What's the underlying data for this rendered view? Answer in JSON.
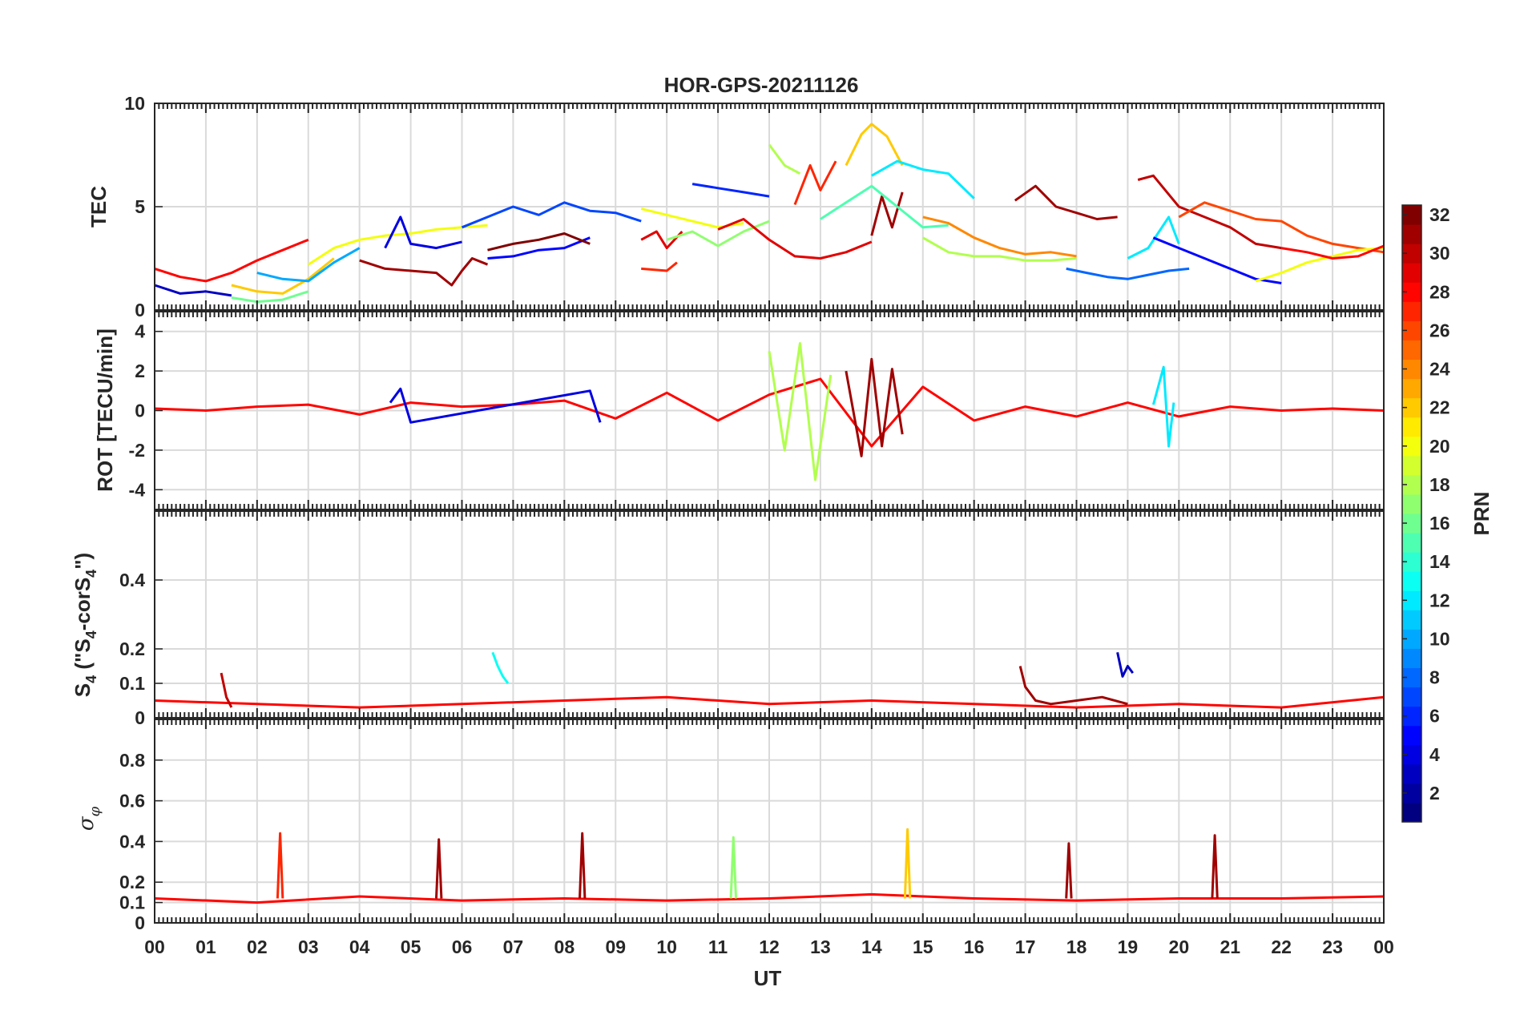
{
  "chart_data": {
    "type": "line",
    "title": "HOR-GPS-20211126",
    "xlabel": "UT",
    "x_ticks": [
      "00",
      "01",
      "02",
      "03",
      "04",
      "05",
      "06",
      "07",
      "08",
      "09",
      "10",
      "11",
      "12",
      "13",
      "14",
      "15",
      "16",
      "17",
      "18",
      "19",
      "20",
      "21",
      "22",
      "23",
      "00"
    ],
    "xlim": [
      0,
      24
    ],
    "grid": true,
    "colorbar": {
      "label": "PRN",
      "range": [
        1,
        32
      ],
      "ticks": [
        "2",
        "4",
        "6",
        "8",
        "10",
        "12",
        "14",
        "16",
        "18",
        "20",
        "22",
        "24",
        "26",
        "28",
        "30",
        "32"
      ],
      "colormap": "jet"
    },
    "panels": [
      {
        "id": "tec",
        "ylabel": "TEC",
        "ylim": [
          0,
          10
        ],
        "yticks": [
          "0",
          "5",
          "10"
        ],
        "series": [
          {
            "prn": 3,
            "x": [
              0,
              0.5,
              1,
              1.5
            ],
            "y": [
              1.2,
              0.8,
              0.9,
              0.7
            ]
          },
          {
            "prn": 28,
            "x": [
              0,
              0.5,
              1,
              1.5,
              2,
              2.5,
              3
            ],
            "y": [
              2.0,
              1.6,
              1.4,
              1.8,
              2.4,
              2.9,
              3.4
            ]
          },
          {
            "prn": 22,
            "x": [
              1.5,
              2,
              2.5,
              3,
              3.5
            ],
            "y": [
              1.2,
              0.9,
              0.8,
              1.5,
              2.5
            ]
          },
          {
            "prn": 16,
            "x": [
              1.5,
              2,
              2.5,
              3
            ],
            "y": [
              0.6,
              0.4,
              0.5,
              0.9
            ]
          },
          {
            "prn": 10,
            "x": [
              2,
              2.5,
              3,
              3.5,
              4
            ],
            "y": [
              1.8,
              1.5,
              1.4,
              2.3,
              3.0
            ]
          },
          {
            "prn": 20,
            "x": [
              3,
              3.5,
              4,
              4.5,
              5,
              5.5,
              6,
              6.5
            ],
            "y": [
              2.2,
              3.0,
              3.4,
              3.6,
              3.7,
              3.9,
              4.0,
              4.1
            ]
          },
          {
            "prn": 4,
            "x": [
              4.5,
              4.8,
              5,
              5.5,
              6
            ],
            "y": [
              3.0,
              4.5,
              3.2,
              3.0,
              3.3
            ]
          },
          {
            "prn": 31,
            "x": [
              4,
              4.5,
              5,
              5.5,
              5.8,
              6,
              6.2,
              6.5
            ],
            "y": [
              2.4,
              2.0,
              1.9,
              1.8,
              1.2,
              1.9,
              2.5,
              2.2
            ]
          },
          {
            "prn": 7,
            "x": [
              6,
              6.5,
              7,
              7.5,
              8,
              8.5,
              9,
              9.5
            ],
            "y": [
              4.0,
              4.5,
              5.0,
              4.6,
              5.2,
              4.8,
              4.7,
              4.3
            ]
          },
          {
            "prn": 5,
            "x": [
              6.5,
              7,
              7.5,
              8,
              8.5
            ],
            "y": [
              2.5,
              2.6,
              2.9,
              3.0,
              3.5
            ]
          },
          {
            "prn": 32,
            "x": [
              6.5,
              7,
              7.5,
              8,
              8.5
            ],
            "y": [
              2.9,
              3.2,
              3.4,
              3.7,
              3.2
            ]
          },
          {
            "prn": 27,
            "x": [
              9.5,
              10,
              10.2
            ],
            "y": [
              2.0,
              1.9,
              2.3
            ]
          },
          {
            "prn": 29,
            "x": [
              9.5,
              9.8,
              10,
              10.3
            ],
            "y": [
              3.4,
              3.8,
              3.0,
              3.8
            ]
          },
          {
            "prn": 20,
            "x": [
              9.5,
              10,
              10.5,
              11,
              11.5
            ],
            "y": [
              4.9,
              4.6,
              4.3,
              4.0,
              4.2
            ]
          },
          {
            "prn": 6,
            "x": [
              10.5,
              11,
              11.5,
              12
            ],
            "y": [
              6.1,
              5.9,
              5.7,
              5.5
            ]
          },
          {
            "prn": 17,
            "x": [
              10,
              10.5,
              11,
              11.5,
              12
            ],
            "y": [
              3.4,
              3.8,
              3.1,
              3.8,
              4.3
            ]
          },
          {
            "prn": 29,
            "x": [
              11,
              11.5,
              12,
              12.5,
              13,
              13.5,
              14
            ],
            "y": [
              3.9,
              4.4,
              3.4,
              2.6,
              2.5,
              2.8,
              3.3
            ]
          },
          {
            "prn": 18,
            "x": [
              12,
              12.3,
              12.6
            ],
            "y": [
              8.0,
              7.0,
              6.6
            ]
          },
          {
            "prn": 27,
            "x": [
              12.5,
              12.8,
              13,
              13.3
            ],
            "y": [
              5.1,
              7.0,
              5.8,
              7.2
            ]
          },
          {
            "prn": 22,
            "x": [
              13.5,
              13.8,
              14,
              14.3,
              14.6
            ],
            "y": [
              7.0,
              8.5,
              9.0,
              8.4,
              7.0
            ]
          },
          {
            "prn": 12,
            "x": [
              14,
              14.5,
              15,
              15.5,
              16
            ],
            "y": [
              6.5,
              7.2,
              6.8,
              6.6,
              5.4
            ]
          },
          {
            "prn": 31,
            "x": [
              14,
              14.2,
              14.4,
              14.6
            ],
            "y": [
              3.6,
              5.5,
              4.0,
              5.7
            ]
          },
          {
            "prn": 15,
            "x": [
              13,
              13.5,
              14,
              14.5,
              15,
              15.5
            ],
            "y": [
              4.4,
              5.2,
              6.0,
              5.0,
              4.0,
              4.1
            ]
          },
          {
            "prn": 18,
            "x": [
              15,
              15.5,
              16,
              16.5,
              17,
              17.5,
              18
            ],
            "y": [
              3.5,
              2.8,
              2.6,
              2.6,
              2.4,
              2.4,
              2.5
            ]
          },
          {
            "prn": 24,
            "x": [
              15,
              15.5,
              16,
              16.5,
              17,
              17.5,
              18
            ],
            "y": [
              4.5,
              4.2,
              3.5,
              3.0,
              2.7,
              2.8,
              2.6
            ]
          },
          {
            "prn": 31,
            "x": [
              16.8,
              17.2,
              17.6,
              18,
              18.4,
              18.8
            ],
            "y": [
              5.3,
              6.0,
              5.0,
              4.7,
              4.4,
              4.5
            ]
          },
          {
            "prn": 8,
            "x": [
              17.8,
              18.2,
              18.6,
              19,
              19.4,
              19.8,
              20.2
            ],
            "y": [
              2.0,
              1.8,
              1.6,
              1.5,
              1.7,
              1.9,
              2.0
            ]
          },
          {
            "prn": 12,
            "x": [
              19,
              19.4,
              19.8,
              20
            ],
            "y": [
              2.5,
              3.0,
              4.5,
              3.2
            ]
          },
          {
            "prn": 30,
            "x": [
              19.2,
              19.5,
              20,
              20.5,
              21,
              21.5,
              22
            ],
            "y": [
              6.3,
              6.5,
              5.0,
              4.5,
              4.0,
              3.2,
              3.0
            ]
          },
          {
            "prn": 26,
            "x": [
              20,
              20.5,
              21,
              21.5,
              22,
              22.5,
              23,
              23.5,
              24
            ],
            "y": [
              4.5,
              5.2,
              4.8,
              4.4,
              4.3,
              3.6,
              3.2,
              3.0,
              2.8
            ]
          },
          {
            "prn": 5,
            "x": [
              19.5,
              20,
              20.5,
              21,
              21.5,
              22
            ],
            "y": [
              3.5,
              3.0,
              2.5,
              2.0,
              1.5,
              1.3
            ]
          },
          {
            "prn": 20,
            "x": [
              21.5,
              22,
              22.5,
              23,
              23.5,
              24
            ],
            "y": [
              1.4,
              1.8,
              2.3,
              2.6,
              2.9,
              3.0
            ]
          },
          {
            "prn": 28,
            "x": [
              22,
              22.5,
              23,
              23.5,
              24
            ],
            "y": [
              3.0,
              2.8,
              2.5,
              2.6,
              3.1
            ]
          }
        ]
      },
      {
        "id": "rot",
        "ylabel": "ROT [TECU/min]",
        "ylim": [
          -5,
          5
        ],
        "yticks": [
          "-4",
          "-2",
          "0",
          "2",
          "4"
        ],
        "series": [
          {
            "prn": 28,
            "x": [
              0,
              1,
              2,
              3,
              4,
              5,
              6,
              7,
              8,
              9,
              10,
              11,
              12,
              13,
              14,
              15,
              16,
              17,
              18,
              19,
              20,
              21,
              22,
              23,
              24
            ],
            "y": [
              0.1,
              0.0,
              0.2,
              0.3,
              -0.2,
              0.4,
              0.2,
              0.3,
              0.5,
              -0.4,
              0.9,
              -0.5,
              0.8,
              1.6,
              -1.8,
              1.2,
              -0.5,
              0.2,
              -0.3,
              0.4,
              -0.3,
              0.2,
              0.0,
              0.1,
              0.0
            ]
          },
          {
            "prn": 18,
            "x": [
              12,
              12.3,
              12.6,
              12.9,
              13.2
            ],
            "y": [
              3.0,
              -2.0,
              3.4,
              -3.5,
              1.8
            ]
          },
          {
            "prn": 31,
            "x": [
              13.5,
              13.8,
              14,
              14.2,
              14.4,
              14.6
            ],
            "y": [
              2.0,
              -2.3,
              2.6,
              -1.8,
              2.1,
              -1.2
            ]
          },
          {
            "prn": 12,
            "x": [
              19.5,
              19.7,
              19.8,
              19.9
            ],
            "y": [
              0.3,
              2.2,
              -1.8,
              0.4
            ]
          },
          {
            "prn": 4,
            "x": [
              4.6,
              4.8,
              5.0,
              8.5,
              8.7
            ],
            "y": [
              0.4,
              1.1,
              -0.6,
              1.0,
              -0.6
            ]
          }
        ]
      },
      {
        "id": "s4",
        "ylabel": "S4 (\"S4-corS4\")",
        "ylim": [
          0,
          0.6
        ],
        "yticks": [
          "0",
          "0.1",
          "0.2",
          "0.4"
        ],
        "series": [
          {
            "prn": 28,
            "x": [
              0,
              2,
              4,
              6,
              8,
              10,
              12,
              14,
              16,
              18,
              20,
              22,
              24
            ],
            "y": [
              0.05,
              0.04,
              0.03,
              0.04,
              0.05,
              0.06,
              0.04,
              0.05,
              0.04,
              0.03,
              0.04,
              0.03,
              0.06
            ]
          },
          {
            "prn": 13,
            "x": [
              6.6,
              6.7,
              6.8,
              6.9
            ],
            "y": [
              0.19,
              0.15,
              0.12,
              0.1
            ]
          },
          {
            "prn": 3,
            "x": [
              18.8,
              18.9,
              19.0,
              19.1
            ],
            "y": [
              0.19,
              0.12,
              0.15,
              0.13
            ]
          },
          {
            "prn": 31,
            "x": [
              16.9,
              17.0,
              17.2,
              17.5,
              18,
              18.5,
              19
            ],
            "y": [
              0.15,
              0.09,
              0.05,
              0.04,
              0.05,
              0.06,
              0.04
            ]
          },
          {
            "prn": 30,
            "x": [
              1.3,
              1.4,
              1.5
            ],
            "y": [
              0.13,
              0.06,
              0.03
            ]
          }
        ]
      },
      {
        "id": "sigma_phi",
        "ylabel": "σφ",
        "ylim": [
          0,
          1
        ],
        "yticks": [
          "0",
          "0.1",
          "0.2",
          "0.4",
          "0.6",
          "0.8"
        ],
        "series": [
          {
            "prn": 28,
            "x": [
              0,
              2,
              4,
              6,
              8,
              10,
              12,
              14,
              16,
              18,
              20,
              22,
              24
            ],
            "y": [
              0.12,
              0.1,
              0.13,
              0.11,
              0.12,
              0.11,
              0.12,
              0.14,
              0.12,
              0.11,
              0.12,
              0.12,
              0.13
            ]
          },
          {
            "prn": 27,
            "x": [
              2.4,
              2.45,
              2.5
            ],
            "y": [
              0.12,
              0.44,
              0.12
            ]
          },
          {
            "prn": 31,
            "x": [
              5.5,
              5.55,
              5.6
            ],
            "y": [
              0.12,
              0.41,
              0.12
            ]
          },
          {
            "prn": 31,
            "x": [
              8.3,
              8.35,
              8.4
            ],
            "y": [
              0.12,
              0.44,
              0.12
            ]
          },
          {
            "prn": 17,
            "x": [
              11.25,
              11.3,
              11.35
            ],
            "y": [
              0.12,
              0.42,
              0.12
            ]
          },
          {
            "prn": 22,
            "x": [
              14.65,
              14.7,
              14.75
            ],
            "y": [
              0.12,
              0.46,
              0.12
            ]
          },
          {
            "prn": 31,
            "x": [
              17.8,
              17.85,
              17.9
            ],
            "y": [
              0.12,
              0.39,
              0.12
            ]
          },
          {
            "prn": 31,
            "x": [
              20.65,
              20.7,
              20.75
            ],
            "y": [
              0.12,
              0.43,
              0.12
            ]
          }
        ]
      }
    ]
  }
}
